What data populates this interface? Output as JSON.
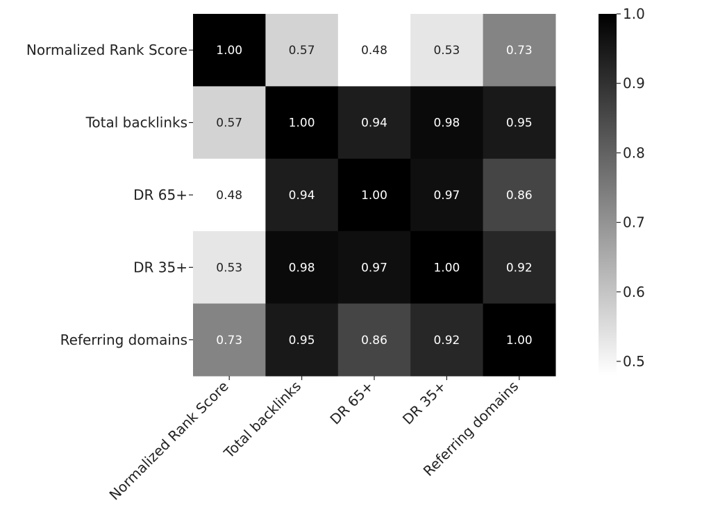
{
  "chart_data": {
    "type": "heatmap",
    "title": "",
    "xlabel": "",
    "ylabel": "",
    "rows": [
      "Normalized Rank Score",
      "Total backlinks",
      "DR 65+",
      "DR 35+",
      "Referring domains"
    ],
    "columns": [
      "Normalized Rank Score",
      "Total backlinks",
      "DR 65+",
      "DR 35+",
      "Referring domains"
    ],
    "values": [
      [
        1.0,
        0.57,
        0.48,
        0.53,
        0.73
      ],
      [
        0.57,
        1.0,
        0.94,
        0.98,
        0.95
      ],
      [
        0.48,
        0.94,
        1.0,
        0.97,
        0.86
      ],
      [
        0.53,
        0.98,
        0.97,
        1.0,
        0.92
      ],
      [
        0.73,
        0.95,
        0.86,
        0.92,
        1.0
      ]
    ],
    "value_format": "0.00",
    "colormap": "grayscale (white = low, black = high)",
    "colorbar": {
      "range": [
        0.48,
        1.0
      ],
      "ticks": [
        "0.5",
        "0.6",
        "0.7",
        "0.8",
        "0.9",
        "1.0"
      ],
      "placement": "right"
    }
  }
}
